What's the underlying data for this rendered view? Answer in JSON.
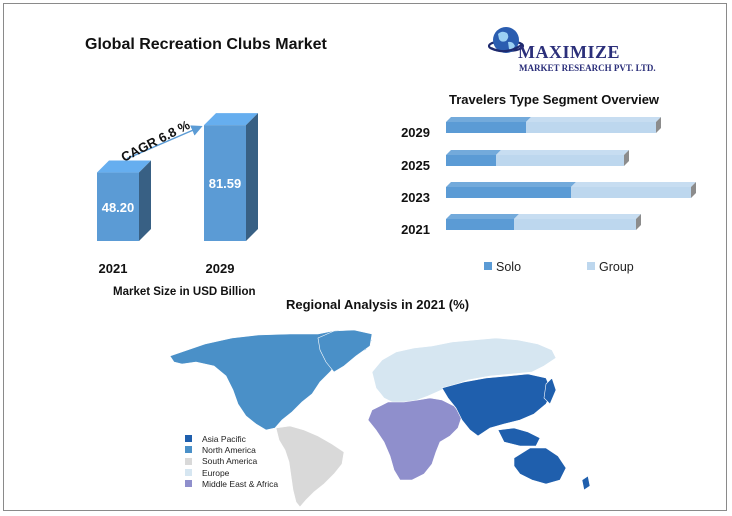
{
  "title": "Global Recreation Clubs Market",
  "logo": {
    "name": "MAXIMIZE",
    "sub": "MARKET RESEARCH PVT. LTD."
  },
  "chart_data": [
    {
      "type": "bar",
      "categories": [
        "2021",
        "2029"
      ],
      "values": [
        48.2,
        81.59
      ],
      "value_labels": [
        "48.20",
        "81.59"
      ],
      "xlabel": "Market Size in USD Billion",
      "annotation": "CAGR 6.8 %",
      "color": "#5b9bd5"
    },
    {
      "type": "bar",
      "orientation": "horizontal",
      "stacked": true,
      "title": "Travelers Type  Segment Overview",
      "categories": [
        "2029",
        "2025",
        "2023",
        "2021"
      ],
      "series": [
        {
          "name": "Solo",
          "values": [
            80,
            50,
            125,
            68
          ],
          "color": "#5b9bd5"
        },
        {
          "name": "Group",
          "values": [
            130,
            128,
            120,
            122
          ],
          "color": "#bdd7ee"
        }
      ]
    },
    {
      "type": "map",
      "title": "Regional Analysis in 2021 (%)",
      "legend": [
        {
          "label": "Asia Pacific",
          "color": "#1f5fad"
        },
        {
          "label": "North America",
          "color": "#4a90c8"
        },
        {
          "label": "South America",
          "color": "#d9d9d9"
        },
        {
          "label": "Europe",
          "color": "#d6e6f1"
        },
        {
          "label": "Middle East & Africa",
          "color": "#8f8fcc"
        }
      ]
    }
  ]
}
